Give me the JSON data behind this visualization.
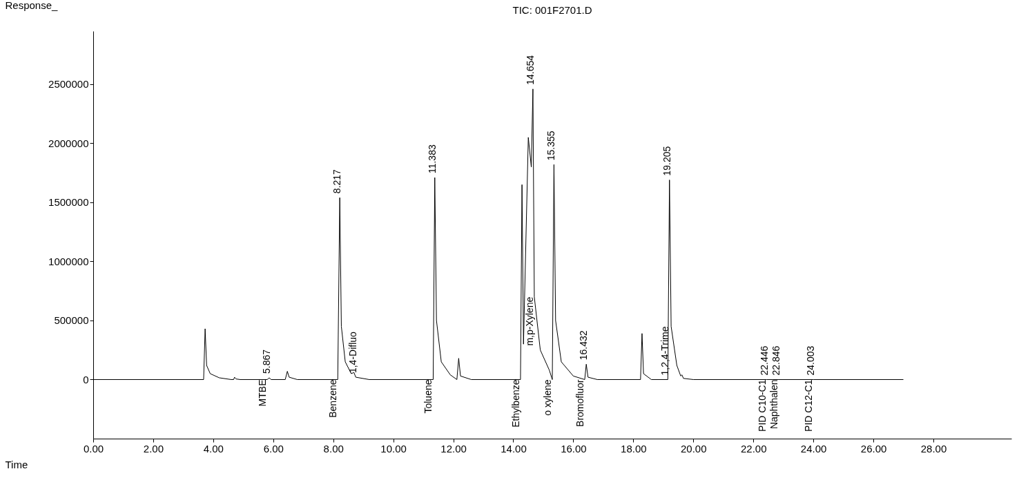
{
  "chart_data": {
    "type": "line",
    "title": "TIC: 001F2701.D",
    "xlabel": "Time",
    "ylabel": "Response_",
    "series": [
      {
        "color": "#000000",
        "x": [
          0,
          3.68,
          3.73,
          3.78,
          3.9,
          4.2,
          4.6,
          4.68,
          4.71,
          4.76,
          4.9,
          5.8,
          5.867,
          5.93,
          6.4,
          6.47,
          6.53,
          6.8,
          8.15,
          8.217,
          8.27,
          8.4,
          8.6,
          8.69,
          8.75,
          9.2,
          11.33,
          11.383,
          11.44,
          11.6,
          11.9,
          12.12,
          12.18,
          12.24,
          12.6,
          14.24,
          14.29,
          14.34,
          14.5,
          14.6,
          14.654,
          14.7,
          14.9,
          15.2,
          15.3,
          15.355,
          15.41,
          15.6,
          16.0,
          16.38,
          16.432,
          16.49,
          16.8,
          18.24,
          18.29,
          18.34,
          18.6,
          19.15,
          19.205,
          19.26,
          19.45,
          19.58,
          19.62,
          19.67,
          20.0,
          22.446,
          22.846,
          24.003,
          27.0
        ],
        "values": [
          0,
          0,
          430000,
          120000,
          50000,
          15000,
          0,
          0,
          20000,
          5000,
          0,
          0,
          15000,
          0,
          0,
          70000,
          20000,
          0,
          0,
          1540000,
          450000,
          150000,
          50000,
          60000,
          20000,
          0,
          0,
          1710000,
          500000,
          150000,
          40000,
          0,
          180000,
          30000,
          0,
          0,
          1650000,
          300000,
          2050000,
          1800000,
          2460000,
          700000,
          250000,
          80000,
          0,
          1820000,
          500000,
          150000,
          30000,
          0,
          130000,
          20000,
          0,
          0,
          390000,
          50000,
          0,
          0,
          1690000,
          450000,
          120000,
          30000,
          40000,
          10000,
          0,
          0,
          0,
          0,
          0
        ]
      }
    ],
    "xlim": [
      0,
      30.6
    ],
    "ylim": [
      -500000,
      2950000
    ],
    "xticks": [
      {
        "value": 0,
        "label": "0.00"
      },
      {
        "value": 2,
        "label": "2.00"
      },
      {
        "value": 4,
        "label": "4.00"
      },
      {
        "value": 6,
        "label": "6.00"
      },
      {
        "value": 8,
        "label": "8.00"
      },
      {
        "value": 10,
        "label": "10.00"
      },
      {
        "value": 12,
        "label": "12.00"
      },
      {
        "value": 14,
        "label": "14.00"
      },
      {
        "value": 16,
        "label": "16.00"
      },
      {
        "value": 18,
        "label": "18.00"
      },
      {
        "value": 20,
        "label": "20.00"
      },
      {
        "value": 22,
        "label": "22.00"
      },
      {
        "value": 24,
        "label": "24.00"
      },
      {
        "value": 26,
        "label": "26.00"
      },
      {
        "value": 28,
        "label": "28.00"
      }
    ],
    "yticks": [
      0,
      500000,
      1000000,
      1500000,
      2000000,
      2500000
    ],
    "grid": false,
    "annotations": [
      {
        "text": "5.867",
        "x": 5.867,
        "y": 15000
      },
      {
        "text": "8.217",
        "x": 8.217,
        "y": 1540000
      },
      {
        "text": "11.383",
        "x": 11.383,
        "y": 1710000
      },
      {
        "text": "14.654",
        "x": 14.654,
        "y": 2460000
      },
      {
        "text": "15.355",
        "x": 15.355,
        "y": 1820000
      },
      {
        "text": "16.432",
        "x": 16.432,
        "y": 130000
      },
      {
        "text": "19.205",
        "x": 19.205,
        "y": 1690000
      },
      {
        "text": "22.446",
        "x": 22.446,
        "y": 0
      },
      {
        "text": "22.846",
        "x": 22.846,
        "y": 0
      },
      {
        "text": "24.003",
        "x": 24.003,
        "y": 0
      },
      {
        "text": "MTBE",
        "x": 5.8,
        "y": 0
      },
      {
        "text": "Benzene",
        "x": 8.15,
        "y": 0
      },
      {
        "text": "1,4-Difluo",
        "x": 8.75,
        "y": 20000
      },
      {
        "text": "Toluene",
        "x": 11.33,
        "y": 0
      },
      {
        "text": "Ethylbenze",
        "x": 14.24,
        "y": 0
      },
      {
        "text": "m,p-Xylene",
        "x": 14.7,
        "y": 700000
      },
      {
        "text": "o xylene",
        "x": 15.3,
        "y": 0
      },
      {
        "text": "Bromofluor",
        "x": 16.38,
        "y": 0
      },
      {
        "text": "1,2,4-Trime",
        "x": 19.15,
        "y": 0
      },
      {
        "text": "PID C10-C1",
        "x": 22.446,
        "y": 0
      },
      {
        "text": "Naphthalen",
        "x": 22.846,
        "y": 0
      },
      {
        "text": "PID C12-C1",
        "x": 24.003,
        "y": 0
      }
    ]
  }
}
